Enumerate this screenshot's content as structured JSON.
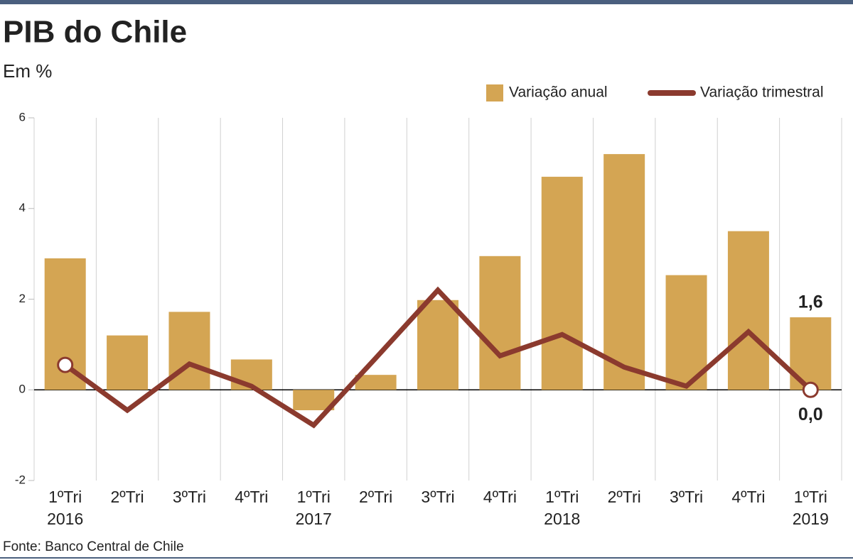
{
  "chart_data": {
    "type": "bar_line",
    "title": "PIB do Chile",
    "subtitle": "Em %",
    "source": "Fonte: Banco Central de Chile",
    "categories": [
      "1ºTri",
      "2ºTri",
      "3ºTri",
      "4ºTri",
      "1ºTri",
      "2ºTri",
      "3ºTri",
      "4ºTri",
      "1ºTri",
      "2ºTri",
      "3ºTri",
      "4ºTri",
      "1ºTri"
    ],
    "years": [
      "2016",
      null,
      null,
      null,
      "2017",
      null,
      null,
      null,
      "2018",
      null,
      null,
      null,
      "2019"
    ],
    "series": [
      {
        "name": "Variação anual",
        "type": "bar",
        "color": "#d4a553",
        "values": [
          2.9,
          1.2,
          1.72,
          0.67,
          -0.45,
          0.33,
          1.98,
          2.95,
          4.7,
          5.2,
          2.53,
          3.5,
          1.6
        ],
        "value_labels": [
          null,
          null,
          null,
          null,
          null,
          null,
          null,
          null,
          null,
          null,
          null,
          null,
          "1,6"
        ]
      },
      {
        "name": "Variação trimestral",
        "type": "line",
        "color": "#8b3a2e",
        "values": [
          0.55,
          -0.45,
          0.57,
          0.08,
          -0.78,
          0.7,
          2.2,
          0.75,
          1.22,
          0.5,
          0.08,
          1.28,
          0
        ],
        "value_labels": [
          null,
          null,
          null,
          null,
          null,
          null,
          null,
          null,
          null,
          null,
          null,
          null,
          "0,0"
        ]
      }
    ],
    "ylim": [
      -2,
      6
    ],
    "yticks": [
      -2,
      0,
      2,
      4,
      6
    ],
    "legend": "top-right"
  }
}
